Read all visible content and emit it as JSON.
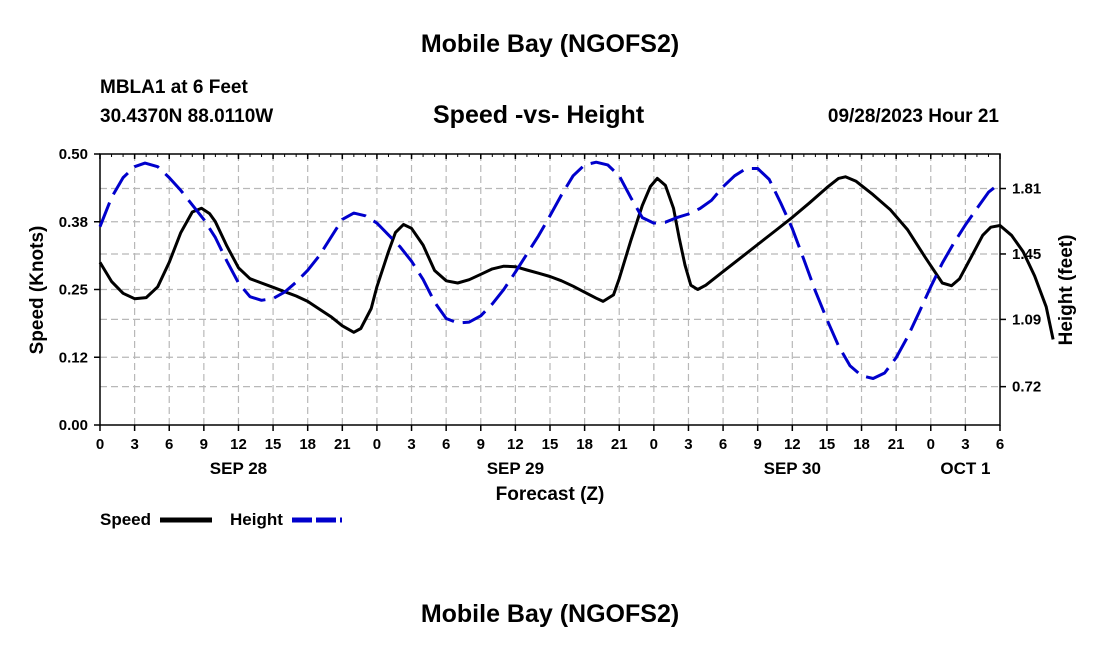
{
  "page": {
    "main_title": "Mobile Bay (NGOFS2)",
    "bottom_title": "Mobile Bay (NGOFS2)",
    "station": "MBLA1 at 6 Feet",
    "coords": "30.4370N  88.0110W",
    "subtitle": "Speed -vs- Height",
    "datetime": "09/28/2023 Hour 21"
  },
  "chart_data": {
    "type": "line",
    "xlabel": "Forecast (Z)",
    "ylabel_left": "Speed (Knots)",
    "ylabel_right": "Height (feet)",
    "x_range_hours": [
      0,
      78
    ],
    "ylim_left": [
      0,
      0.5
    ],
    "ylim_right": [
      0.509,
      2.0
    ],
    "left_ticks": [
      {
        "value": 0.0,
        "label": "0.00"
      },
      {
        "value": 0.125,
        "label": "0.12"
      },
      {
        "value": 0.25,
        "label": "0.25"
      },
      {
        "value": 0.375,
        "label": "0.38"
      },
      {
        "value": 0.5,
        "label": "0.50"
      }
    ],
    "right_ticks": [
      {
        "value": 0.72,
        "label": "0.72"
      },
      {
        "value": 1.09,
        "label": "1.09"
      },
      {
        "value": 1.45,
        "label": "1.45"
      },
      {
        "value": 1.81,
        "label": "1.81"
      }
    ],
    "x_ticks": [
      {
        "hour": 0,
        "label": "0"
      },
      {
        "hour": 3,
        "label": "3"
      },
      {
        "hour": 6,
        "label": "6"
      },
      {
        "hour": 9,
        "label": "9"
      },
      {
        "hour": 12,
        "label": "12"
      },
      {
        "hour": 15,
        "label": "15"
      },
      {
        "hour": 18,
        "label": "18"
      },
      {
        "hour": 21,
        "label": "21"
      },
      {
        "hour": 24,
        "label": "0"
      },
      {
        "hour": 27,
        "label": "3"
      },
      {
        "hour": 30,
        "label": "6"
      },
      {
        "hour": 33,
        "label": "9"
      },
      {
        "hour": 36,
        "label": "12"
      },
      {
        "hour": 39,
        "label": "15"
      },
      {
        "hour": 42,
        "label": "18"
      },
      {
        "hour": 45,
        "label": "21"
      },
      {
        "hour": 48,
        "label": "0"
      },
      {
        "hour": 51,
        "label": "3"
      },
      {
        "hour": 54,
        "label": "6"
      },
      {
        "hour": 57,
        "label": "9"
      },
      {
        "hour": 60,
        "label": "12"
      },
      {
        "hour": 63,
        "label": "15"
      },
      {
        "hour": 66,
        "label": "18"
      },
      {
        "hour": 69,
        "label": "21"
      },
      {
        "hour": 72,
        "label": "0"
      },
      {
        "hour": 75,
        "label": "3"
      },
      {
        "hour": 78,
        "label": "6"
      }
    ],
    "date_labels": [
      {
        "hour": 12,
        "label": "SEP 28"
      },
      {
        "hour": 36,
        "label": "SEP 29"
      },
      {
        "hour": 60,
        "label": "SEP 30"
      },
      {
        "hour": 75,
        "label": "OCT 1"
      }
    ],
    "legend": [
      {
        "name": "Speed",
        "color": "#000000",
        "style": "solid"
      },
      {
        "name": "Height",
        "color": "#0000cc",
        "style": "dashed"
      }
    ],
    "series": [
      {
        "name": "Speed",
        "axis": "left",
        "color": "#000000",
        "points": [
          [
            0,
            0.3
          ],
          [
            1,
            0.265
          ],
          [
            2,
            0.243
          ],
          [
            3,
            0.233
          ],
          [
            4,
            0.235
          ],
          [
            5,
            0.255
          ],
          [
            6,
            0.3
          ],
          [
            7,
            0.355
          ],
          [
            8,
            0.393
          ],
          [
            8.8,
            0.4
          ],
          [
            9.5,
            0.39
          ],
          [
            10,
            0.375
          ],
          [
            11,
            0.33
          ],
          [
            12,
            0.29
          ],
          [
            13,
            0.27
          ],
          [
            14,
            0.262
          ],
          [
            15,
            0.254
          ],
          [
            16,
            0.246
          ],
          [
            17,
            0.238
          ],
          [
            18,
            0.228
          ],
          [
            19,
            0.214
          ],
          [
            20,
            0.2
          ],
          [
            21,
            0.183
          ],
          [
            22,
            0.171
          ],
          [
            22.6,
            0.178
          ],
          [
            23.5,
            0.215
          ],
          [
            24,
            0.255
          ],
          [
            25,
            0.32
          ],
          [
            25.6,
            0.355
          ],
          [
            26.3,
            0.37
          ],
          [
            27,
            0.363
          ],
          [
            28,
            0.332
          ],
          [
            29,
            0.285
          ],
          [
            30,
            0.266
          ],
          [
            31,
            0.262
          ],
          [
            32,
            0.268
          ],
          [
            33,
            0.278
          ],
          [
            34,
            0.288
          ],
          [
            35,
            0.293
          ],
          [
            36,
            0.292
          ],
          [
            37,
            0.286
          ],
          [
            38,
            0.28
          ],
          [
            39,
            0.274
          ],
          [
            40,
            0.266
          ],
          [
            41,
            0.256
          ],
          [
            42,
            0.245
          ],
          [
            43,
            0.234
          ],
          [
            43.6,
            0.228
          ],
          [
            44.5,
            0.24
          ],
          [
            45,
            0.27
          ],
          [
            46,
            0.34
          ],
          [
            47,
            0.405
          ],
          [
            47.7,
            0.44
          ],
          [
            48.3,
            0.455
          ],
          [
            49,
            0.442
          ],
          [
            49.7,
            0.4
          ],
          [
            50.2,
            0.345
          ],
          [
            50.7,
            0.295
          ],
          [
            51.2,
            0.258
          ],
          [
            51.8,
            0.25
          ],
          [
            52.5,
            0.258
          ],
          [
            54,
            0.283
          ],
          [
            55.5,
            0.308
          ],
          [
            57,
            0.333
          ],
          [
            58.5,
            0.358
          ],
          [
            60,
            0.383
          ],
          [
            61.5,
            0.41
          ],
          [
            63,
            0.438
          ],
          [
            64,
            0.455
          ],
          [
            64.6,
            0.458
          ],
          [
            65.5,
            0.45
          ],
          [
            67,
            0.425
          ],
          [
            68.5,
            0.397
          ],
          [
            70,
            0.36
          ],
          [
            71.5,
            0.31
          ],
          [
            73,
            0.262
          ],
          [
            73.8,
            0.257
          ],
          [
            74.5,
            0.27
          ],
          [
            75.5,
            0.31
          ],
          [
            76.5,
            0.35
          ],
          [
            77.2,
            0.365
          ],
          [
            78,
            0.368
          ],
          [
            79,
            0.35
          ],
          [
            80,
            0.32
          ],
          [
            81,
            0.275
          ],
          [
            82,
            0.218
          ],
          [
            82.6,
            0.158
          ]
        ]
      },
      {
        "name": "Height",
        "axis": "right",
        "color": "#0000cc",
        "points": [
          [
            0,
            1.6
          ],
          [
            1,
            1.76
          ],
          [
            2,
            1.87
          ],
          [
            3,
            1.93
          ],
          [
            3.9,
            1.95
          ],
          [
            5,
            1.93
          ],
          [
            6,
            1.87
          ],
          [
            7,
            1.8
          ],
          [
            8,
            1.72
          ],
          [
            9,
            1.64
          ],
          [
            10,
            1.54
          ],
          [
            11,
            1.41
          ],
          [
            12,
            1.29
          ],
          [
            13,
            1.215
          ],
          [
            14,
            1.195
          ],
          [
            15,
            1.205
          ],
          [
            16,
            1.24
          ],
          [
            17,
            1.295
          ],
          [
            18,
            1.36
          ],
          [
            19,
            1.44
          ],
          [
            20,
            1.54
          ],
          [
            21,
            1.64
          ],
          [
            22,
            1.675
          ],
          [
            23,
            1.66
          ],
          [
            24,
            1.62
          ],
          [
            25,
            1.555
          ],
          [
            26,
            1.49
          ],
          [
            27,
            1.41
          ],
          [
            28,
            1.31
          ],
          [
            29,
            1.185
          ],
          [
            30,
            1.095
          ],
          [
            31,
            1.07
          ],
          [
            32,
            1.075
          ],
          [
            33,
            1.11
          ],
          [
            34,
            1.175
          ],
          [
            35,
            1.255
          ],
          [
            36,
            1.35
          ],
          [
            37,
            1.45
          ],
          [
            38,
            1.55
          ],
          [
            39,
            1.66
          ],
          [
            40,
            1.775
          ],
          [
            41,
            1.88
          ],
          [
            42,
            1.94
          ],
          [
            43,
            1.955
          ],
          [
            44,
            1.94
          ],
          [
            45,
            1.88
          ],
          [
            46,
            1.76
          ],
          [
            47,
            1.65
          ],
          [
            48,
            1.62
          ],
          [
            49,
            1.625
          ],
          [
            50,
            1.65
          ],
          [
            51,
            1.67
          ],
          [
            52,
            1.7
          ],
          [
            53,
            1.745
          ],
          [
            54,
            1.82
          ],
          [
            55,
            1.88
          ],
          [
            56,
            1.92
          ],
          [
            57,
            1.92
          ],
          [
            58,
            1.86
          ],
          [
            59,
            1.73
          ],
          [
            60,
            1.59
          ],
          [
            61,
            1.42
          ],
          [
            62,
            1.245
          ],
          [
            63,
            1.09
          ],
          [
            64,
            0.945
          ],
          [
            65,
            0.835
          ],
          [
            66,
            0.78
          ],
          [
            67,
            0.765
          ],
          [
            68,
            0.795
          ],
          [
            69,
            0.88
          ],
          [
            70,
            0.995
          ],
          [
            71,
            1.13
          ],
          [
            72,
            1.27
          ],
          [
            73,
            1.4
          ],
          [
            74,
            1.51
          ],
          [
            75,
            1.61
          ],
          [
            76,
            1.7
          ],
          [
            77,
            1.79
          ],
          [
            78,
            1.84
          ]
        ]
      }
    ]
  }
}
